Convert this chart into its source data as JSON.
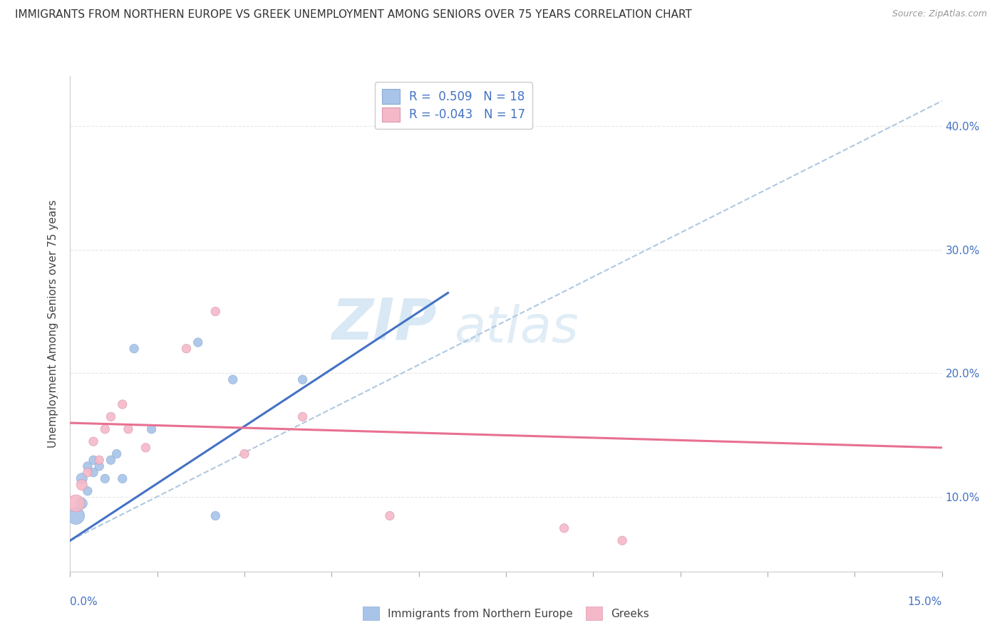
{
  "title": "IMMIGRANTS FROM NORTHERN EUROPE VS GREEK UNEMPLOYMENT AMONG SENIORS OVER 75 YEARS CORRELATION CHART",
  "source": "Source: ZipAtlas.com",
  "xlabel_bottom_left": "0.0%",
  "xlabel_bottom_right": "15.0%",
  "ylabel": "Unemployment Among Seniors over 75 years",
  "ytick_labels": [
    "10.0%",
    "20.0%",
    "30.0%",
    "40.0%"
  ],
  "ytick_values": [
    0.1,
    0.2,
    0.3,
    0.4
  ],
  "xlim": [
    0.0,
    0.15
  ],
  "ylim": [
    0.04,
    0.44
  ],
  "watermark_zip": "ZIP",
  "watermark_atlas": "atlas",
  "blue_scatter_x": [
    0.001,
    0.002,
    0.002,
    0.003,
    0.003,
    0.004,
    0.004,
    0.005,
    0.006,
    0.007,
    0.008,
    0.009,
    0.011,
    0.014,
    0.022,
    0.025,
    0.028,
    0.04
  ],
  "blue_scatter_y": [
    0.085,
    0.095,
    0.115,
    0.105,
    0.125,
    0.12,
    0.13,
    0.125,
    0.115,
    0.13,
    0.135,
    0.115,
    0.22,
    0.155,
    0.225,
    0.085,
    0.195,
    0.195
  ],
  "blue_scatter_sizes": [
    300,
    120,
    120,
    80,
    80,
    80,
    80,
    80,
    80,
    80,
    80,
    80,
    80,
    80,
    80,
    80,
    80,
    80
  ],
  "pink_scatter_x": [
    0.001,
    0.002,
    0.003,
    0.004,
    0.005,
    0.006,
    0.007,
    0.009,
    0.01,
    0.013,
    0.02,
    0.025,
    0.03,
    0.04,
    0.055,
    0.085,
    0.095
  ],
  "pink_scatter_y": [
    0.095,
    0.11,
    0.12,
    0.145,
    0.13,
    0.155,
    0.165,
    0.175,
    0.155,
    0.14,
    0.22,
    0.25,
    0.135,
    0.165,
    0.085,
    0.075,
    0.065
  ],
  "pink_scatter_sizes": [
    300,
    120,
    80,
    80,
    80,
    80,
    80,
    80,
    80,
    80,
    80,
    80,
    80,
    80,
    80,
    80,
    80
  ],
  "blue_color": "#a8c4e8",
  "pink_color": "#f5b8c8",
  "blue_line_color": "#4472c4",
  "pink_line_color": "#e87090",
  "blue_trendline_x": [
    0.0,
    0.065
  ],
  "blue_trendline_y": [
    0.065,
    0.265
  ],
  "pink_trendline_x": [
    0.0,
    0.15
  ],
  "pink_trendline_y": [
    0.16,
    0.14
  ],
  "dashed_line_x": [
    0.0,
    0.15
  ],
  "dashed_line_y": [
    0.065,
    0.42
  ],
  "grid_color": "#e8e8e8",
  "background_color": "#ffffff",
  "legend_blue_color": "#a8c4e8",
  "legend_pink_color": "#f5b8c8",
  "legend_text_color": "#4472c4",
  "right_ytick_color": "#4472c4"
}
